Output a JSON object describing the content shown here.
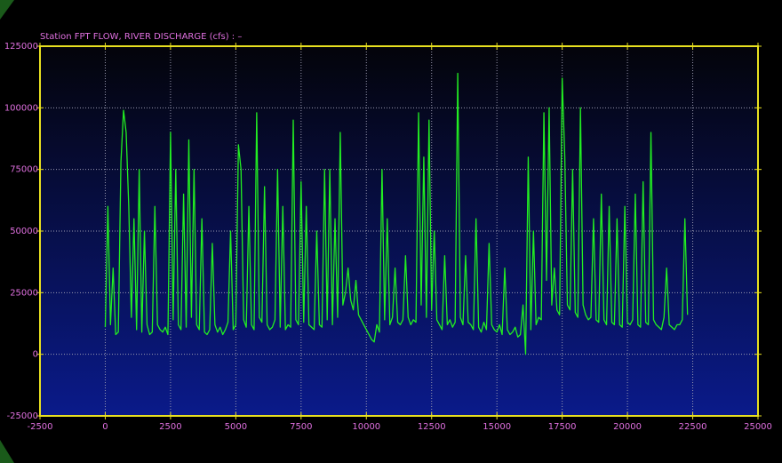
{
  "chart_data": {
    "type": "line",
    "title": "Station FPT FLOW, RIVER DISCHARGE (cfs) :  –",
    "xlim": [
      -2500,
      25000
    ],
    "xticks": [
      -2500,
      0,
      2500,
      5000,
      7500,
      10000,
      12500,
      15000,
      17500,
      20000,
      22500,
      25000
    ],
    "ylim": [
      -25000,
      125000
    ],
    "yticks": [
      -25000,
      0,
      25000,
      50000,
      75000,
      100000,
      125000
    ],
    "grid": true,
    "x": [
      0,
      100,
      200,
      300,
      400,
      500,
      600,
      700,
      800,
      900,
      1000,
      1100,
      1200,
      1300,
      1400,
      1500,
      1600,
      1700,
      1800,
      1900,
      2000,
      2100,
      2200,
      2300,
      2400,
      2500,
      2600,
      2700,
      2800,
      2900,
      3000,
      3100,
      3200,
      3300,
      3400,
      3500,
      3600,
      3700,
      3800,
      3900,
      4000,
      4100,
      4200,
      4300,
      4400,
      4500,
      4600,
      4700,
      4800,
      4900,
      5000,
      5100,
      5200,
      5300,
      5400,
      5500,
      5600,
      5700,
      5800,
      5900,
      6000,
      6100,
      6200,
      6300,
      6400,
      6500,
      6600,
      6700,
      6800,
      6900,
      7000,
      7100,
      7200,
      7300,
      7400,
      7500,
      7600,
      7700,
      7800,
      7900,
      8000,
      8100,
      8200,
      8300,
      8400,
      8500,
      8600,
      8700,
      8800,
      8900,
      9000,
      9100,
      9200,
      9300,
      9400,
      9500,
      9600,
      9700,
      9800,
      9900,
      10000,
      10100,
      10200,
      10300,
      10400,
      10500,
      10600,
      10700,
      10800,
      10900,
      11000,
      11100,
      11200,
      11300,
      11400,
      11500,
      11600,
      11700,
      11800,
      11900,
      12000,
      12100,
      12200,
      12300,
      12400,
      12500,
      12600,
      12700,
      12800,
      12900,
      13000,
      13100,
      13200,
      13300,
      13400,
      13500,
      13600,
      13700,
      13800,
      13900,
      14000,
      14100,
      14200,
      14300,
      14400,
      14500,
      14600,
      14700,
      14800,
      14900,
      15000,
      15100,
      15200,
      15300,
      15400,
      15500,
      15600,
      15700,
      15800,
      15900,
      16000,
      16100,
      16200,
      16300,
      16400,
      16500,
      16600,
      16700,
      16800,
      16900,
      17000,
      17100,
      17200,
      17300,
      17400,
      17500,
      17600,
      17700,
      17800,
      17900,
      18000,
      18100,
      18200,
      18300,
      18400,
      18500,
      18600,
      18700,
      18800,
      18900,
      19000,
      19100,
      19200,
      19300,
      19400,
      19500,
      19600,
      19700,
      19800,
      19900,
      20000,
      20100,
      20200,
      20300,
      20400,
      20500,
      20600,
      20700,
      20800,
      20900,
      21000,
      21100,
      21200,
      21300,
      21400,
      21500,
      21600,
      21700,
      21800,
      21900,
      22000,
      22100,
      22200,
      22300
    ],
    "series": [
      {
        "name": "FLOW",
        "color": "#22ee22",
        "values": [
          11000,
          60000,
          12000,
          35000,
          8000,
          9000,
          78000,
          99000,
          90000,
          60000,
          15000,
          55000,
          10000,
          75000,
          9000,
          50000,
          12000,
          8000,
          9000,
          60000,
          12000,
          10000,
          9000,
          11000,
          8000,
          90000,
          14000,
          75000,
          12000,
          10000,
          65000,
          11000,
          87000,
          15000,
          75000,
          12000,
          10000,
          55000,
          9000,
          8000,
          10000,
          45000,
          12000,
          9000,
          11000,
          8000,
          10000,
          13000,
          50000,
          10000,
          12000,
          85000,
          75000,
          14000,
          11000,
          60000,
          12000,
          10000,
          98000,
          15000,
          13000,
          68000,
          12000,
          10000,
          11000,
          14000,
          75000,
          11000,
          60000,
          10000,
          12000,
          11000,
          95000,
          14000,
          12000,
          70000,
          13000,
          60000,
          12000,
          11000,
          10000,
          50000,
          12000,
          11000,
          75000,
          14000,
          75000,
          12000,
          55000,
          15000,
          90000,
          20000,
          25000,
          35000,
          22000,
          18000,
          30000,
          16000,
          14000,
          12000,
          10000,
          8000,
          6000,
          5000,
          12000,
          9000,
          75000,
          14000,
          55000,
          12000,
          15000,
          35000,
          13000,
          12000,
          14000,
          40000,
          15000,
          12000,
          14000,
          13000,
          98000,
          20000,
          80000,
          15000,
          95000,
          18000,
          50000,
          14000,
          12000,
          10000,
          40000,
          12000,
          14000,
          11000,
          13000,
          114000,
          15000,
          12000,
          40000,
          13000,
          12000,
          10000,
          55000,
          11000,
          9000,
          13000,
          10000,
          45000,
          12000,
          10000,
          9000,
          12000,
          8000,
          35000,
          10000,
          8000,
          9000,
          11000,
          7000,
          8000,
          20000,
          0,
          80000,
          10000,
          50000,
          12000,
          15000,
          14000,
          98000,
          30000,
          100000,
          20000,
          35000,
          18000,
          16000,
          112000,
          80000,
          20000,
          18000,
          75000,
          17000,
          15000,
          100000,
          20000,
          16000,
          14000,
          15000,
          55000,
          14000,
          13000,
          65000,
          14000,
          12000,
          60000,
          13000,
          12000,
          55000,
          12000,
          11000,
          60000,
          13000,
          12000,
          14000,
          65000,
          12000,
          11000,
          70000,
          13000,
          12000,
          90000,
          14000,
          12000,
          11000,
          10000,
          15000,
          35000,
          12000,
          11000,
          10000,
          12000,
          12000,
          14000,
          55000,
          16000
        ]
      }
    ]
  }
}
